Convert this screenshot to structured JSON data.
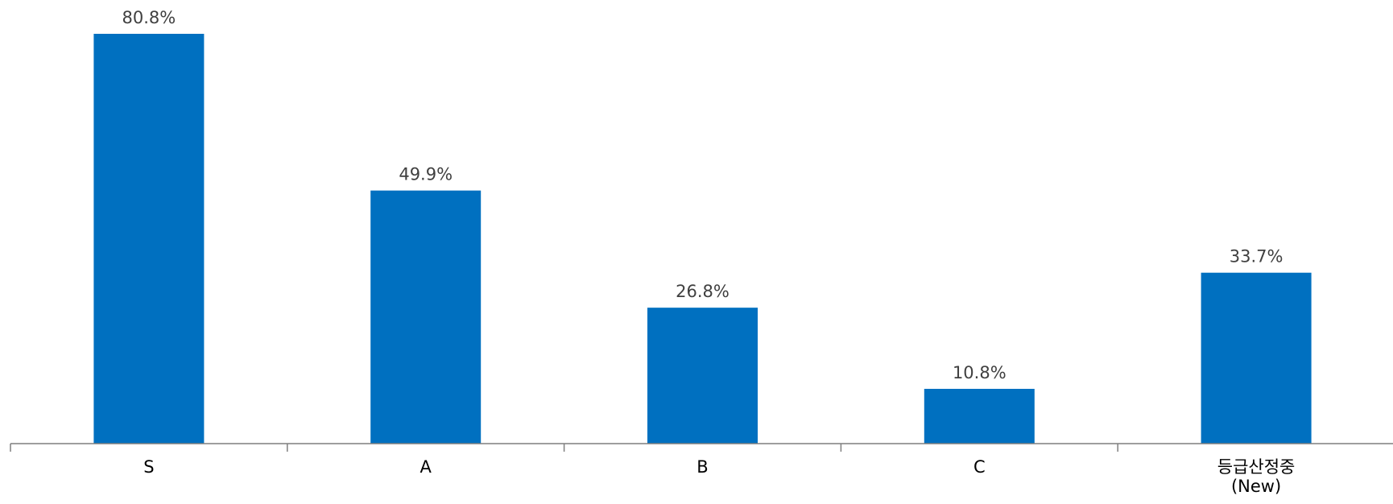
{
  "chart_data": {
    "type": "bar",
    "title": "",
    "xlabel": "",
    "ylabel": "",
    "categories": [
      "S",
      "A",
      "B",
      "C",
      "등급산정중\n(New)"
    ],
    "values": [
      80.8,
      49.9,
      26.8,
      10.8,
      33.7
    ],
    "data_labels": [
      "80.8%",
      "49.9%",
      "26.8%",
      "10.8%",
      "33.7%"
    ],
    "ylim": [
      0,
      80.8
    ],
    "grid": false,
    "legend": "none",
    "colors": {
      "bar": "#0070C0",
      "axis": "#7F7F7F",
      "label": "#404040"
    }
  }
}
